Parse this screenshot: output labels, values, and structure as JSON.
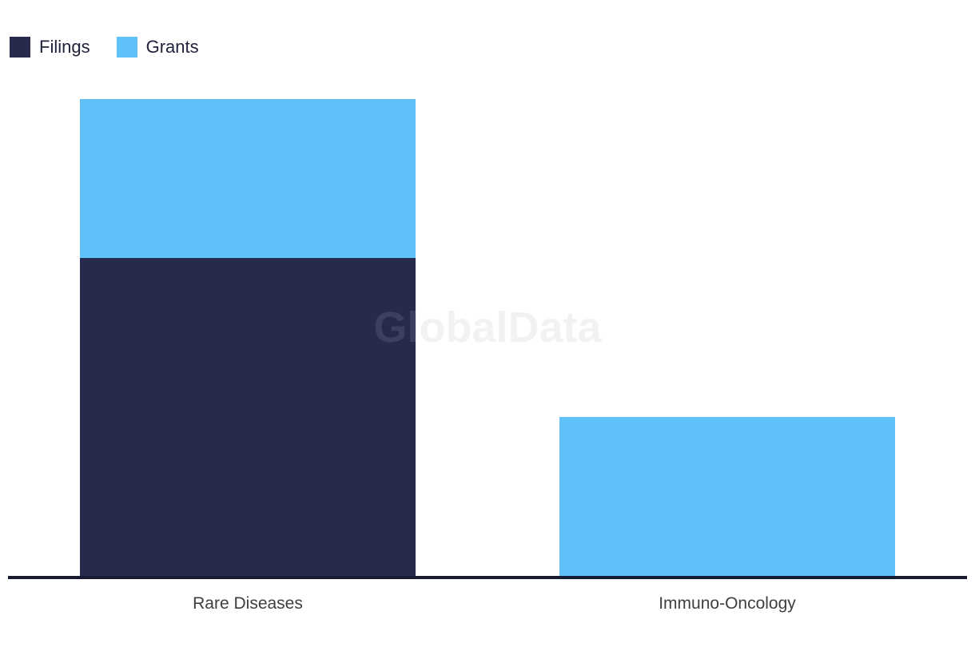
{
  "watermark": {
    "text": "GlobalData"
  },
  "chart_data": {
    "type": "bar",
    "stacked": true,
    "orientation": "vertical",
    "title": "",
    "xlabel": "",
    "ylabel": "",
    "categories": [
      "Rare Diseases",
      "Immuno-Oncology"
    ],
    "series": [
      {
        "name": "Filings",
        "color": "#272a4d",
        "values": [
          2,
          0
        ]
      },
      {
        "name": "Grants",
        "color": "#5fc1f7",
        "values": [
          1,
          1
        ]
      }
    ],
    "ylim": [
      0,
      3
    ],
    "grid": false,
    "y_axis_visible": false,
    "legend_position": "top-left",
    "axis_color": "#161a33",
    "label_color": "#3e3e3e"
  }
}
